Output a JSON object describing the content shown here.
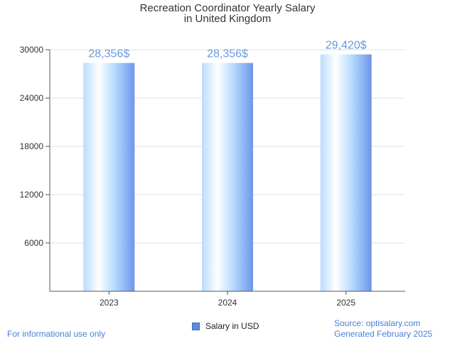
{
  "chart_data": {
    "type": "bar",
    "title": [
      "Recreation Coordinator Yearly Salary",
      "in United Kingdom"
    ],
    "categories": [
      "2023",
      "2024",
      "2025"
    ],
    "series": [
      {
        "name": "Salary in USD",
        "values": [
          28356,
          28356,
          29420
        ]
      }
    ],
    "data_labels": [
      "28,356$",
      "28,356$",
      "29,420$"
    ],
    "yticks": [
      6000,
      12000,
      18000,
      24000,
      30000
    ],
    "ylim": [
      0,
      30000
    ],
    "grid": true,
    "legend_position": "bottom-center",
    "colors": {
      "bar_light": "#dff0ff",
      "bar_mid": "#b9dcff",
      "bar_dark": "#6c96ea",
      "label": "#6a98dc"
    }
  },
  "footer": {
    "left_note": "For informational use only",
    "source": "Source: optisalary.com",
    "generated": "Generated February 2025"
  }
}
